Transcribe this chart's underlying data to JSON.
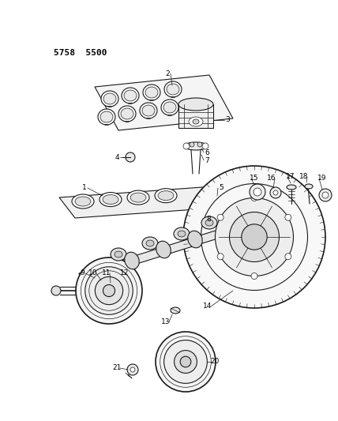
{
  "title_code": "5758  5500",
  "bg_color": "#ffffff",
  "line_color": "#1a1a1a",
  "label_color": "#000000",
  "label_fontsize": 6.5,
  "title_fontsize": 8,
  "fig_width": 4.28,
  "fig_height": 5.33,
  "dpi": 100
}
